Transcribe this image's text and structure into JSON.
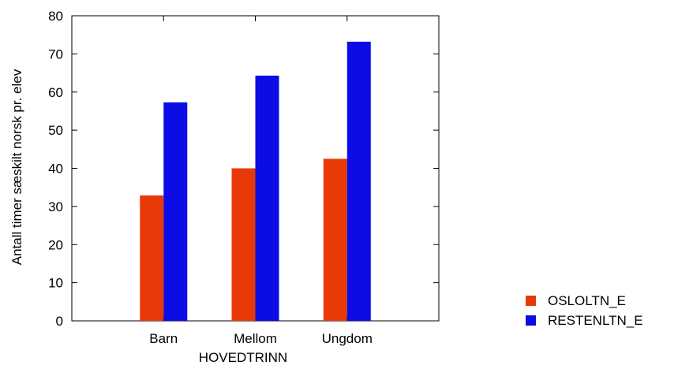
{
  "chart_data": {
    "type": "bar",
    "categories": [
      "Barn",
      "Mellom",
      "Ungdom"
    ],
    "series": [
      {
        "name": "OSLOLTN_E",
        "values": [
          32.9,
          40.0,
          42.5
        ],
        "color": "#e83a08"
      },
      {
        "name": "RESTENLTN_E",
        "values": [
          57.3,
          64.3,
          73.2
        ],
        "color": "#0c0ce6"
      }
    ],
    "xlabel": "HOVEDTRINN",
    "ylabel": "Antall timer sæskilt norsk pr. elev",
    "ylim": [
      0,
      80
    ],
    "yticks": [
      0,
      10,
      20,
      30,
      40,
      50,
      60,
      70,
      80
    ],
    "grid": false,
    "legend_position": "bottom-right"
  }
}
